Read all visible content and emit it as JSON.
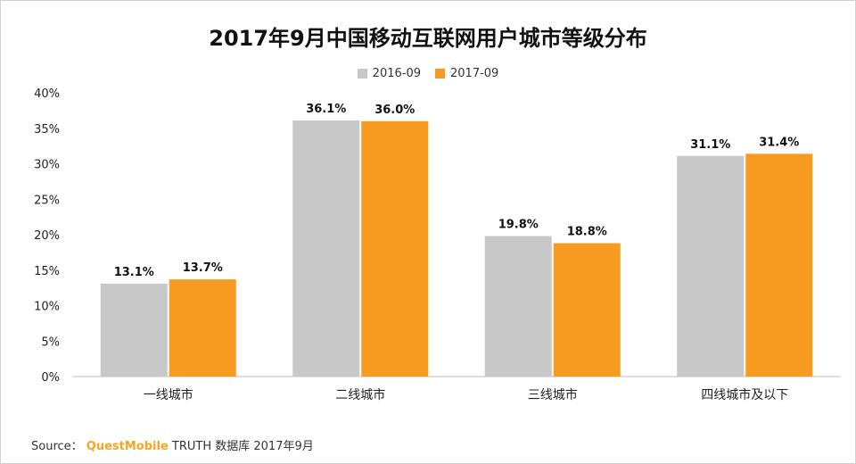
{
  "chart_data": {
    "type": "bar",
    "title": "2017年9月中国移动互联网用户城市等级分布",
    "categories": [
      "一线城市",
      "二线城市",
      "三线城市",
      "四线城市及以下"
    ],
    "series": [
      {
        "name": "2016-09",
        "values": [
          13.1,
          36.1,
          19.8,
          31.1
        ],
        "labels": [
          "13.1%",
          "36.1%",
          "19.8%",
          "31.1%"
        ],
        "color": "#c8c8c8"
      },
      {
        "name": "2017-09",
        "values": [
          13.7,
          36.0,
          18.8,
          31.4
        ],
        "labels": [
          "13.7%",
          "36.0%",
          "18.8%",
          "31.4%"
        ],
        "color": "#f79b21"
      }
    ],
    "ylim": [
      0,
      40
    ],
    "yticks": [
      "0%",
      "5%",
      "10%",
      "15%",
      "20%",
      "25%",
      "30%",
      "35%",
      "40%"
    ],
    "legend_position": "top-center",
    "grid": false
  },
  "source": {
    "prefix": "Source：",
    "brand": "QuestMobile",
    "suffix": "TRUTH 数据库 2017年9月"
  }
}
